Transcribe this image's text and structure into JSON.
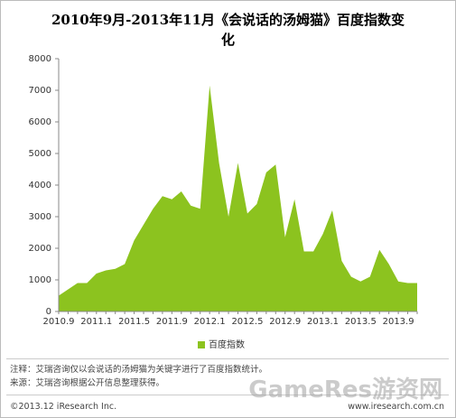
{
  "chart_data": {
    "type": "area",
    "title": "2010年9月-2013年11月《会说话的汤姆猫》百度指数变化",
    "categories": [
      "2010.9",
      null,
      null,
      null,
      "2011.1",
      null,
      null,
      null,
      "2011.5",
      null,
      null,
      null,
      "2011.9",
      null,
      null,
      null,
      "2012.1",
      null,
      null,
      null,
      "2012.5",
      null,
      null,
      null,
      "2012.9",
      null,
      null,
      null,
      "2013.1",
      null,
      null,
      null,
      "2013.5",
      null,
      null,
      null,
      "2013.9",
      null,
      null
    ],
    "series": [
      {
        "name": "百度指数",
        "color": "#8cc31f",
        "values": [
          500,
          700,
          900,
          900,
          1200,
          1300,
          1350,
          1500,
          2250,
          2750,
          3250,
          3650,
          3550,
          3800,
          3350,
          3250,
          7150,
          4700,
          3000,
          4700,
          3100,
          3400,
          4400,
          4650,
          2350,
          3550,
          1900,
          1900,
          2450,
          3200,
          1600,
          1100,
          950,
          1100,
          1950,
          1500,
          950,
          900,
          900
        ]
      }
    ],
    "ylim": [
      0,
      8000
    ],
    "yticks": [
      0,
      1000,
      2000,
      3000,
      4000,
      5000,
      6000,
      7000,
      8000
    ],
    "grid": false,
    "legend": "bottom"
  },
  "footer": {
    "note": "注释：艾瑞咨询仅以会说话的汤姆猫为关键字进行了百度指数统计。",
    "source": "来源：艾瑞咨询根据公开信息整理获得。",
    "copyright": "©2013.12 iResearch Inc.",
    "website": "www.iresearch.com.cn",
    "watermark": "GameRes游资网"
  }
}
